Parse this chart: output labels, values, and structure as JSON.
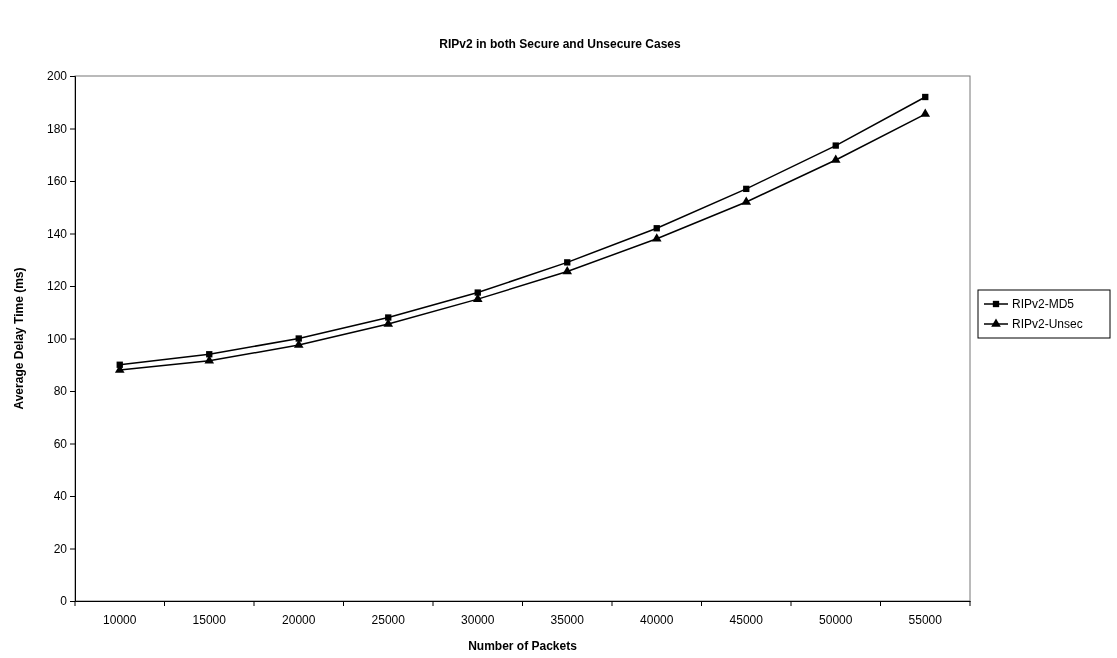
{
  "chart_data": {
    "type": "line",
    "title": "RIPv2 in both Secure and Unsecure Cases",
    "xlabel": "Number of Packets",
    "ylabel": "Average Delay Time (ms)",
    "categories": [
      "10000",
      "15000",
      "20000",
      "25000",
      "30000",
      "35000",
      "40000",
      "45000",
      "50000",
      "55000"
    ],
    "ylim": [
      0,
      200
    ],
    "yticks": [
      0,
      20,
      40,
      60,
      80,
      100,
      120,
      140,
      160,
      180,
      200
    ],
    "grid": false,
    "legend": "right",
    "series": [
      {
        "name": "RIPv2-MD5",
        "color": "#000000",
        "marker": "square",
        "values": [
          90,
          94,
          100,
          108,
          117.5,
          129,
          142,
          157,
          173.5,
          192
        ]
      },
      {
        "name": "RIPv2-Unsec",
        "color": "#000000",
        "marker": "triangle",
        "values": [
          88,
          91.5,
          97.5,
          105.5,
          115,
          125.5,
          138,
          152,
          168,
          185.5
        ]
      }
    ]
  }
}
